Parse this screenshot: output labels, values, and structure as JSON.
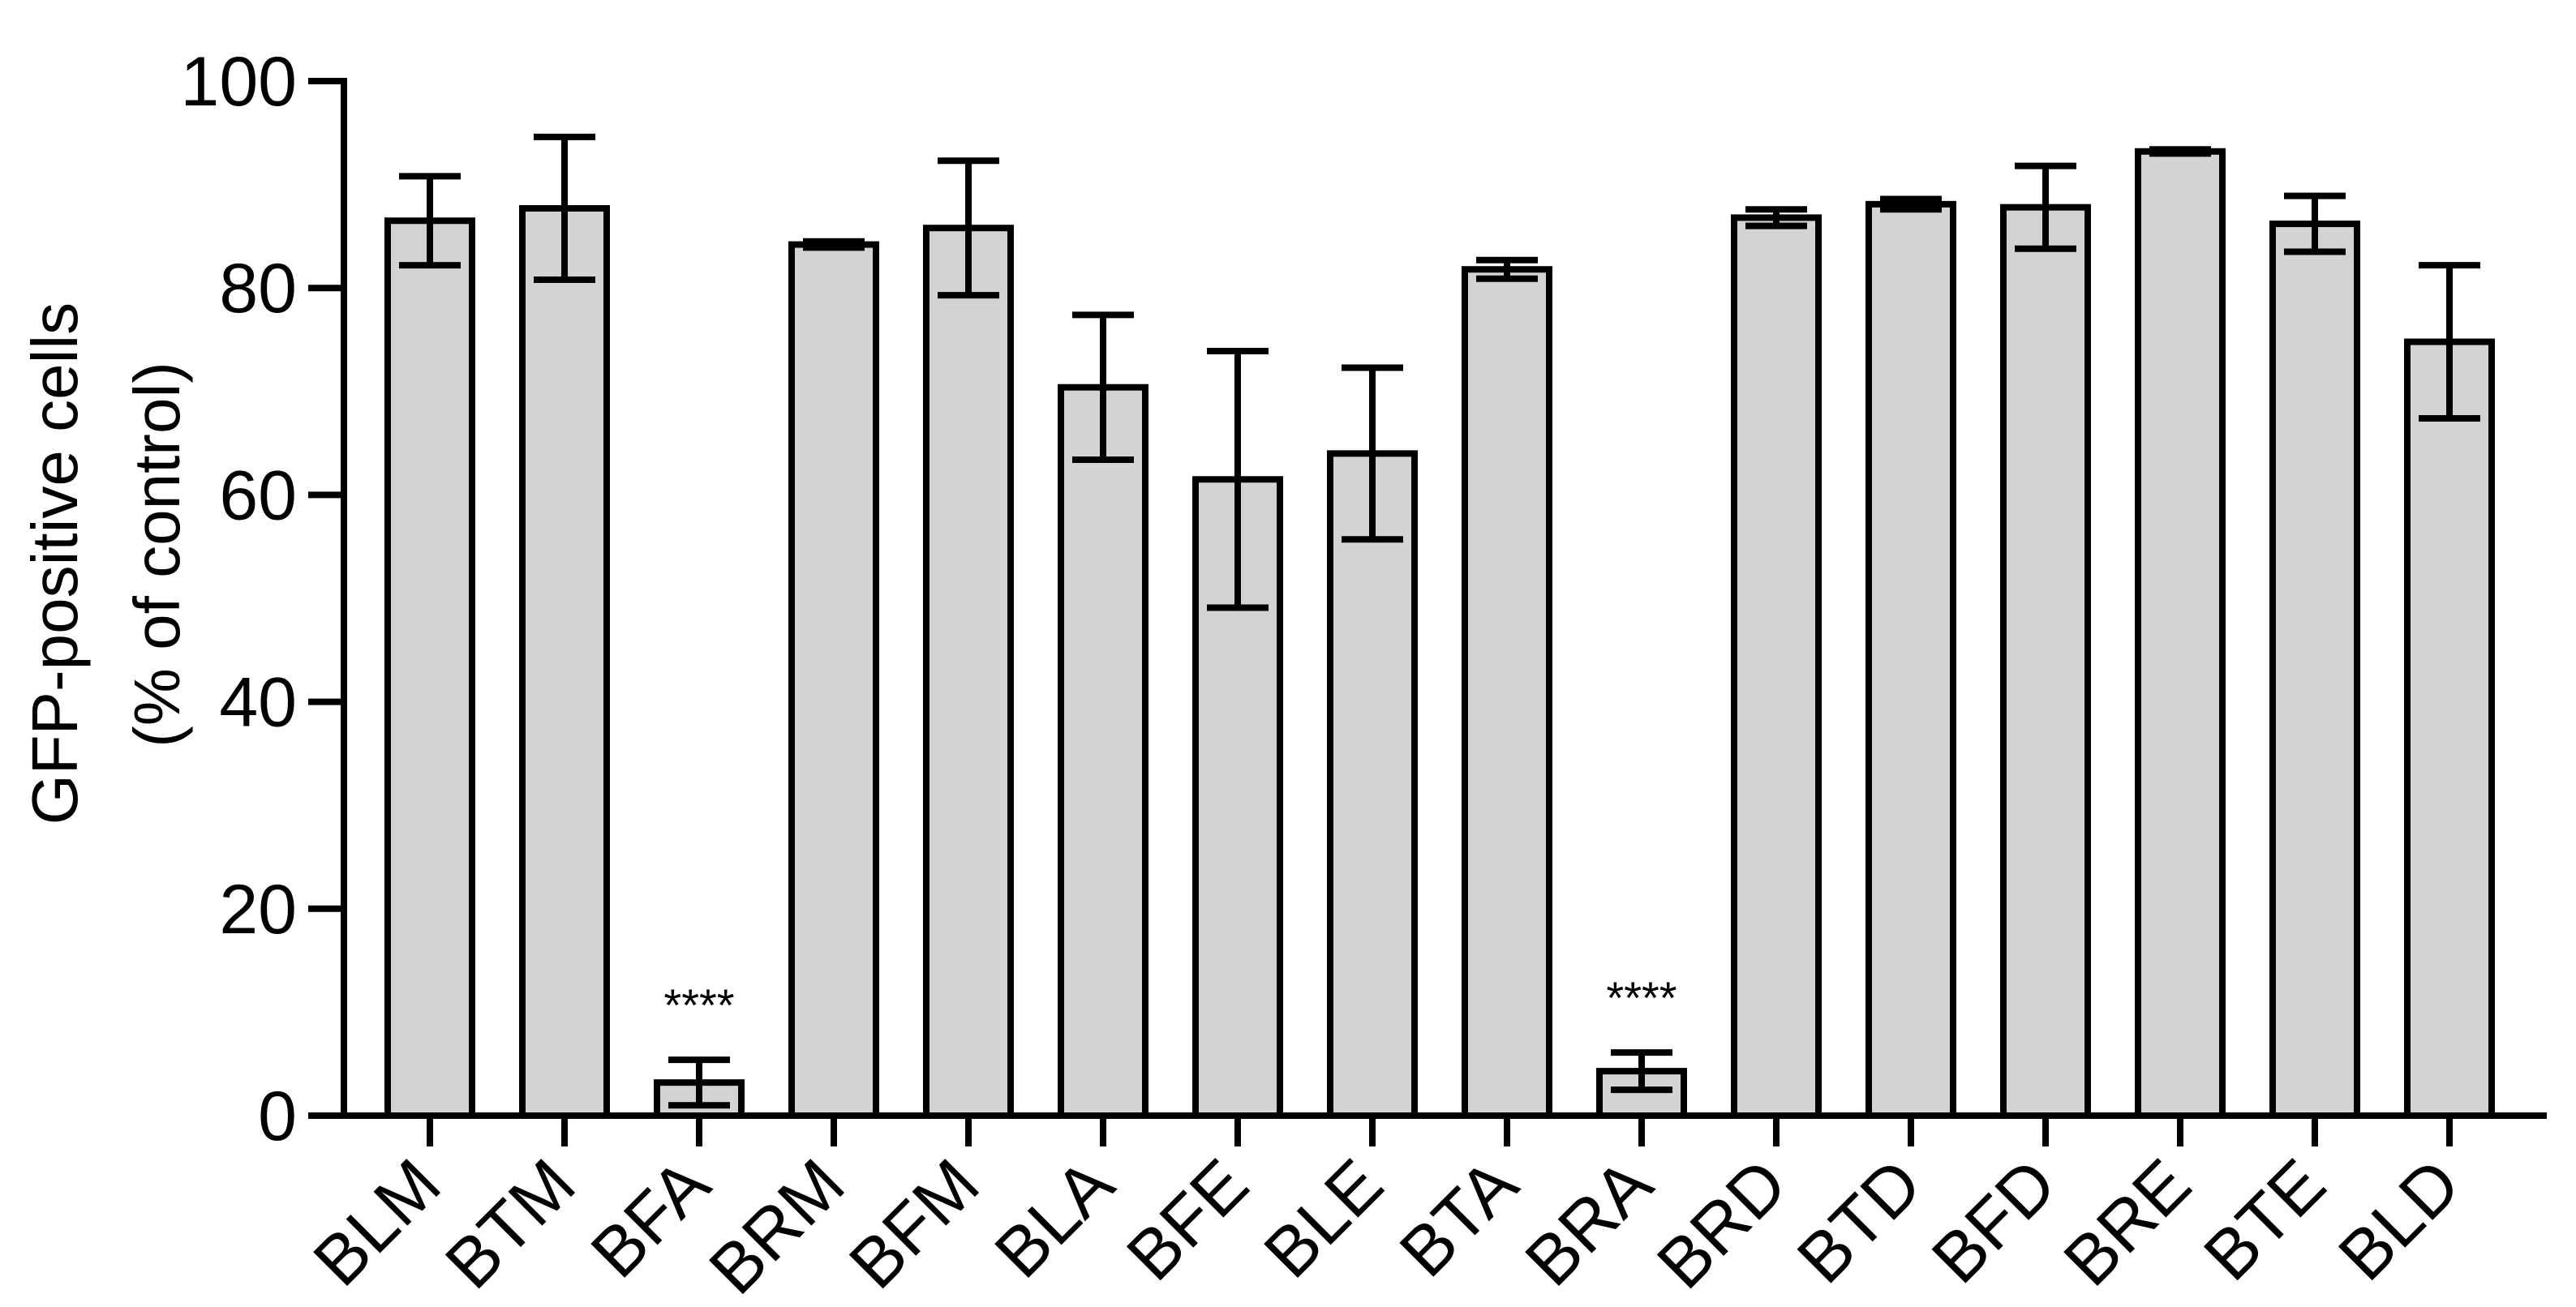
{
  "chart_data": {
    "type": "bar",
    "title": "",
    "ylabel_lines": [
      "GFP-positive cells",
      "(% of control)"
    ],
    "xlabel": "",
    "ylim": [
      0,
      100
    ],
    "yticks": [
      0,
      20,
      40,
      60,
      80,
      100
    ],
    "categories": [
      "BLM",
      "BTM",
      "BFA",
      "BRM",
      "BFM",
      "BLA",
      "BFE",
      "BLE",
      "BTA",
      "BRA",
      "BRD",
      "BTD",
      "BFD",
      "BRE",
      "BTE",
      "BLD"
    ],
    "values": [
      86.5,
      87.7,
      3.2,
      84.2,
      85.8,
      70.4,
      61.5,
      64.0,
      81.8,
      4.3,
      86.8,
      88.1,
      87.8,
      93.2,
      86.2,
      74.8
    ],
    "errors": [
      4.3,
      6.9,
      2.2,
      0.3,
      6.5,
      7.0,
      12.4,
      8.3,
      0.9,
      1.8,
      0.8,
      0.5,
      4.0,
      0.2,
      2.7,
      7.4
    ],
    "annotations": [
      {
        "category": "BFA",
        "text": "****"
      },
      {
        "category": "BRA",
        "text": "****"
      }
    ],
    "bar_color": "#d3d3d3",
    "edge_color": "#000000",
    "grid": false,
    "legend": "none"
  }
}
